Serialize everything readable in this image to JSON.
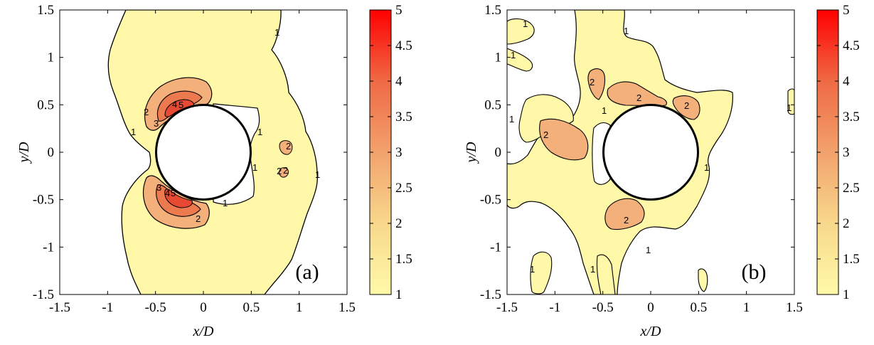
{
  "chart_data": [
    {
      "type": "heatmap",
      "panel_label": "(a)",
      "xlabel": "x/D",
      "ylabel": "y/D",
      "xlim": [
        -1.5,
        1.5
      ],
      "ylim": [
        -1.5,
        1.5
      ],
      "xticks": [
        "-1.5",
        "-1",
        "-0.5",
        "0",
        "0.5",
        "1",
        "1.5"
      ],
      "yticks": [
        "1.5",
        "1",
        "0.5",
        "0",
        "-0.5",
        "-1",
        "-1.5"
      ],
      "colorbar": {
        "min": 1,
        "max": 5,
        "ticks": [
          "5",
          "4.5",
          "4",
          "3.5",
          "3",
          "2.5",
          "2",
          "1.5",
          "1"
        ]
      },
      "cylinder": {
        "center": [
          0,
          0
        ],
        "radius": 0.5
      },
      "contour_levels": [
        1,
        2,
        3,
        4,
        5
      ],
      "contour_labels": [
        "1",
        "1",
        "1",
        "1",
        "1",
        "1",
        "2",
        "2",
        "2",
        "2",
        "2",
        "3",
        "3",
        "4",
        "4",
        "5",
        "5"
      ]
    },
    {
      "type": "heatmap",
      "panel_label": "(b)",
      "xlabel": "x/D",
      "ylabel": "y/D",
      "xlim": [
        -1.5,
        1.5
      ],
      "ylim": [
        -1.5,
        1.5
      ],
      "xticks": [
        "-1.5",
        "-1",
        "-0.5",
        "0",
        "0.5",
        "1",
        "1.5"
      ],
      "yticks": [
        "1.5",
        "1",
        "0.5",
        "0",
        "-0.5",
        "-1",
        "-1.5"
      ],
      "colorbar": {
        "min": 1,
        "max": 5,
        "ticks": [
          "5",
          "4.5",
          "4",
          "3.5",
          "3",
          "2.5",
          "2",
          "1.5",
          "1"
        ]
      },
      "cylinder": {
        "center": [
          0,
          0
        ],
        "radius": 0.5
      },
      "contour_levels": [
        1,
        2
      ],
      "contour_labels": [
        "1",
        "1",
        "1",
        "1",
        "1",
        "1",
        "1",
        "1",
        "1",
        "1",
        "2",
        "2",
        "2",
        "2",
        "2"
      ]
    }
  ],
  "colors": {
    "level_1": "#fff8a8",
    "level_2": "#f4b07a",
    "level_3": "#ec7a4e",
    "level_4": "#e74a32",
    "level_5": "#ff0000"
  }
}
